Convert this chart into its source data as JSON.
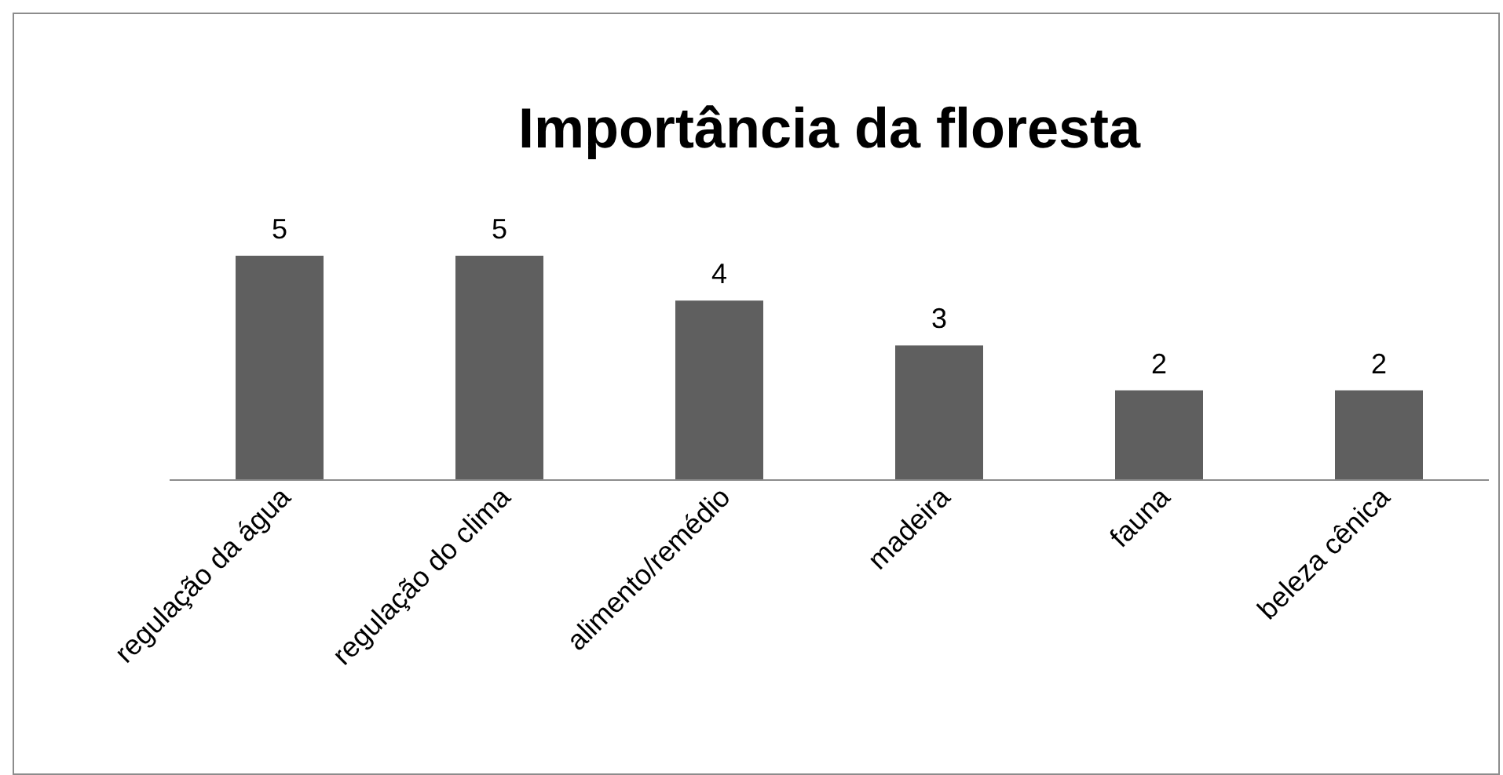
{
  "chart_data": {
    "type": "bar",
    "title": "Importância da floresta",
    "categories": [
      "regulação da água",
      "regulação do clima",
      "alimento/remédio",
      "madeira",
      "fauna",
      "beleza cênica"
    ],
    "values": [
      5,
      5,
      4,
      3,
      2,
      2
    ],
    "color": "#5f5f5f",
    "tick_labels": "x",
    "data_labels": true
  }
}
